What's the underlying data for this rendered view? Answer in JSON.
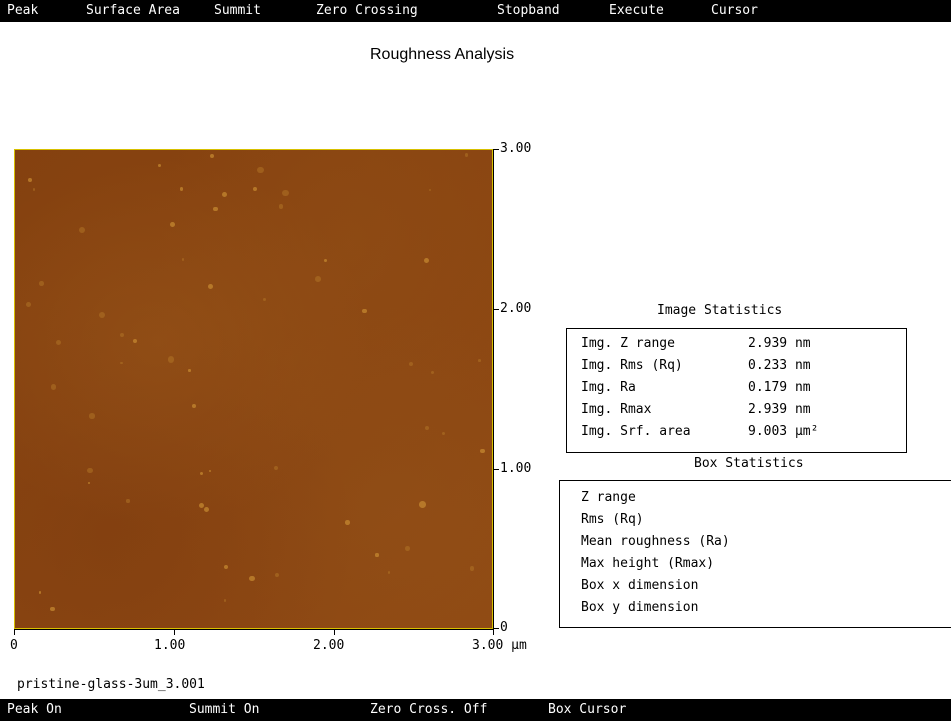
{
  "menu": {
    "items": [
      "Peak",
      "Surface Area",
      "Summit",
      "Zero Crossing",
      "Stopband",
      "Execute",
      "Cursor"
    ]
  },
  "title": "Roughness Analysis",
  "image": {
    "base_color": "#8c4611",
    "border_color": "#d7c000"
  },
  "axes": {
    "y_ticks": [
      "3.00",
      "2.00",
      "1.00",
      "0"
    ],
    "x_ticks": [
      "0",
      "1.00",
      "2.00",
      "3.00 µm"
    ]
  },
  "image_statistics": {
    "heading": "Image Statistics",
    "rows": [
      {
        "label": "Img. Z range",
        "value": "2.939 nm"
      },
      {
        "label": "Img. Rms (Rq)",
        "value": "0.233 nm"
      },
      {
        "label": "Img. Ra",
        "value": "0.179 nm"
      },
      {
        "label": "Img. Rmax",
        "value": "2.939 nm"
      },
      {
        "label": "Img. Srf. area",
        "value": "9.003 µm²"
      }
    ]
  },
  "box_statistics": {
    "heading": "Box Statistics",
    "rows": [
      "Z range",
      "Rms (Rq)",
      "Mean roughness (Ra)",
      "Max height (Rmax)",
      "Box x dimension",
      "Box y dimension"
    ]
  },
  "filename": "pristine-glass-3um_3.001",
  "status": {
    "items": [
      "Peak On",
      "Summit On",
      "Zero Cross. Off",
      "Box Cursor"
    ]
  }
}
